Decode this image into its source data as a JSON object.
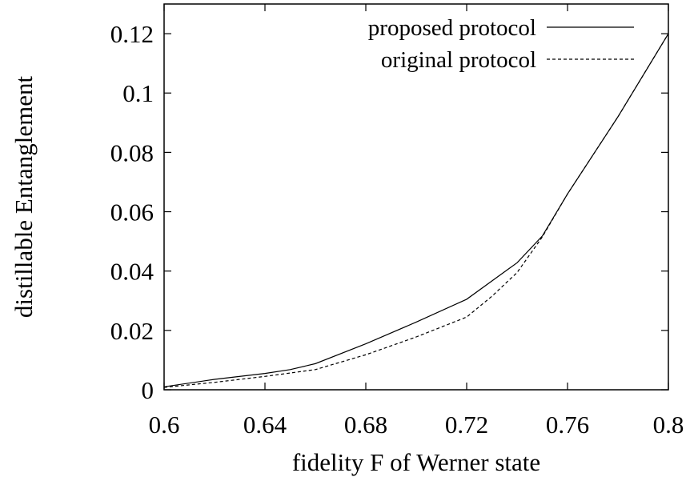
{
  "chart_data": {
    "type": "line",
    "title": "",
    "xlabel": "fidelity F of Werner state",
    "ylabel": "distillable Entanglement",
    "xlim": [
      0.6,
      0.8
    ],
    "ylim": [
      0,
      0.13
    ],
    "xticks": [
      "0.6",
      "0.64",
      "0.68",
      "0.72",
      "0.76",
      "0.8"
    ],
    "yticks": [
      "0",
      "0.02",
      "0.04",
      "0.06",
      "0.08",
      "0.1",
      "0.12"
    ],
    "grid": false,
    "legend": "top-right",
    "series": [
      {
        "name": "proposed protocol",
        "style": "solid",
        "x": [
          0.6,
          0.62,
          0.64,
          0.65,
          0.66,
          0.68,
          0.7,
          0.72,
          0.74,
          0.75,
          0.76,
          0.78,
          0.8
        ],
        "y": [
          0.001,
          0.0035,
          0.0055,
          0.0068,
          0.0088,
          0.0155,
          0.0228,
          0.0305,
          0.0428,
          0.0518,
          0.066,
          0.092,
          0.12
        ]
      },
      {
        "name": "original protocol",
        "style": "dashed",
        "x": [
          0.6,
          0.62,
          0.64,
          0.66,
          0.68,
          0.7,
          0.72,
          0.73,
          0.74,
          0.75,
          0.76,
          0.78,
          0.8
        ],
        "y": [
          0.0008,
          0.0025,
          0.0045,
          0.0068,
          0.0118,
          0.0178,
          0.0245,
          0.0315,
          0.0395,
          0.0515,
          0.066,
          0.092,
          0.12
        ]
      }
    ]
  }
}
